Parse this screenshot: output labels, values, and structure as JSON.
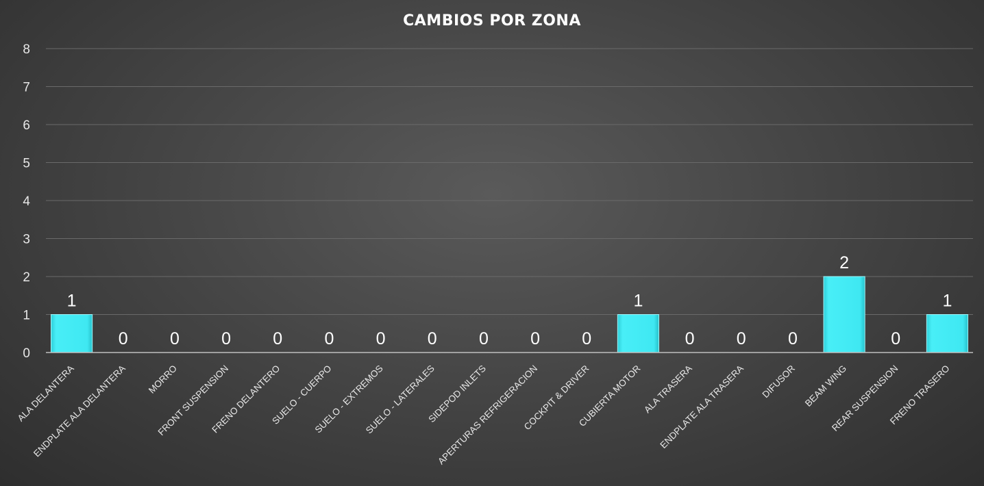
{
  "chart_data": {
    "type": "bar",
    "title": "CAMBIOS POR ZONA",
    "xlabel": "",
    "ylabel": "",
    "ylim": [
      0,
      8
    ],
    "yticks": [
      0,
      1,
      2,
      3,
      4,
      5,
      6,
      7,
      8
    ],
    "grid": true,
    "legend": "none",
    "bar_color": "#3fe8f2",
    "categories": [
      "ALA DELANTERA",
      "ENDPLATE ALA DELANTERA",
      "MORRO",
      "FRONT SUSPENSION",
      "FRENO DELANTERO",
      "SUELO - CUERPO",
      "SUELO  - EXTREMOS",
      "SUELO - LATERALES",
      "SIDEPOD INLETS",
      "APERTURAS REFRIGERACION",
      "COCKPIT & DRIVER",
      "CUBIERTA MOTOR",
      "ALA TRASERA",
      "ENDPLATE ALA TRASERA",
      "DIFUSOR",
      "BEAM WING",
      "REAR SUSPENSION",
      "FRENO TRASERO"
    ],
    "values": [
      1,
      0,
      0,
      0,
      0,
      0,
      0,
      0,
      0,
      0,
      0,
      1,
      0,
      0,
      0,
      2,
      0,
      1
    ]
  }
}
